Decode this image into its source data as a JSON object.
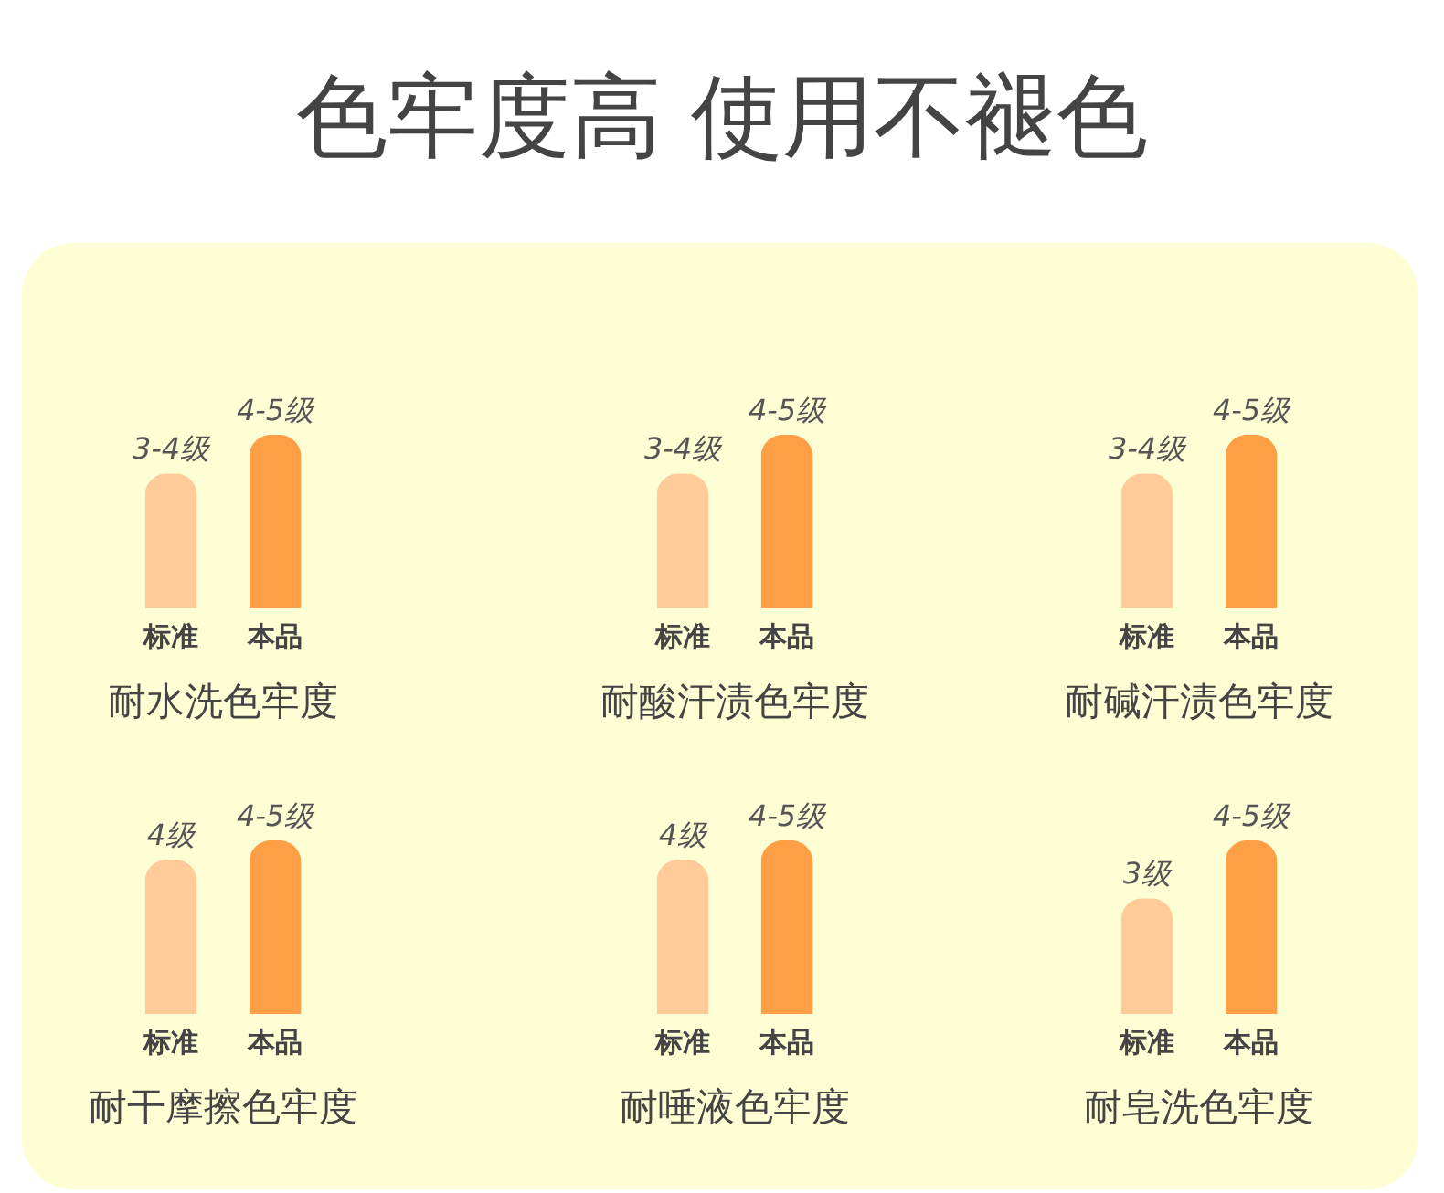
{
  "chart_data": [
    {
      "type": "other",
      "title": "色牢度高 使用不褪色"
    },
    {
      "type": "bar",
      "title": "耐水洗色牢度",
      "categories": [
        "标准",
        "本品"
      ],
      "values": [
        3.5,
        4.5
      ],
      "colors": [
        "#ffcc99",
        "#ff9f45"
      ],
      "value_labels": [
        "3-4级",
        "4-5级"
      ],
      "tick_labels": "x"
    },
    {
      "type": "bar",
      "title": "耐酸汗渍色牢度",
      "categories": [
        "标准",
        "本品"
      ],
      "values": [
        3.5,
        4.5
      ],
      "colors": [
        "#ffcc99",
        "#ff9f45"
      ],
      "value_labels": [
        "3-4级",
        "4-5级"
      ],
      "tick_labels": "x"
    },
    {
      "type": "bar",
      "title": "耐碱汗渍色牢度",
      "categories": [
        "标准",
        "本品"
      ],
      "values": [
        3.5,
        4.5
      ],
      "colors": [
        "#ffcc99",
        "#ff9f45"
      ],
      "value_labels": [
        "3-4级",
        "4-5级"
      ],
      "tick_labels": "x"
    },
    {
      "type": "bar",
      "title": "耐干摩擦色牢度",
      "categories": [
        "标准",
        "本品"
      ],
      "values": [
        4,
        4.5
      ],
      "colors": [
        "#ffcc99",
        "#ff9f45"
      ],
      "value_labels": [
        "4级",
        "4-5级"
      ],
      "tick_labels": "x"
    },
    {
      "type": "bar",
      "title": "耐唾液色牢度",
      "categories": [
        "标准",
        "本品"
      ],
      "values": [
        4,
        4.5
      ],
      "colors": [
        "#ffcc99",
        "#ff9f45"
      ],
      "value_labels": [
        "4级",
        "4-5级"
      ],
      "tick_labels": "x"
    },
    {
      "type": "bar",
      "title": "耐皂洗色牢度",
      "categories": [
        "标准",
        "本品"
      ],
      "values": [
        3,
        4.5
      ],
      "colors": [
        "#ffcc99",
        "#ff9f45"
      ],
      "value_labels": [
        "3级",
        "4-5级"
      ],
      "tick_labels": "x"
    }
  ]
}
